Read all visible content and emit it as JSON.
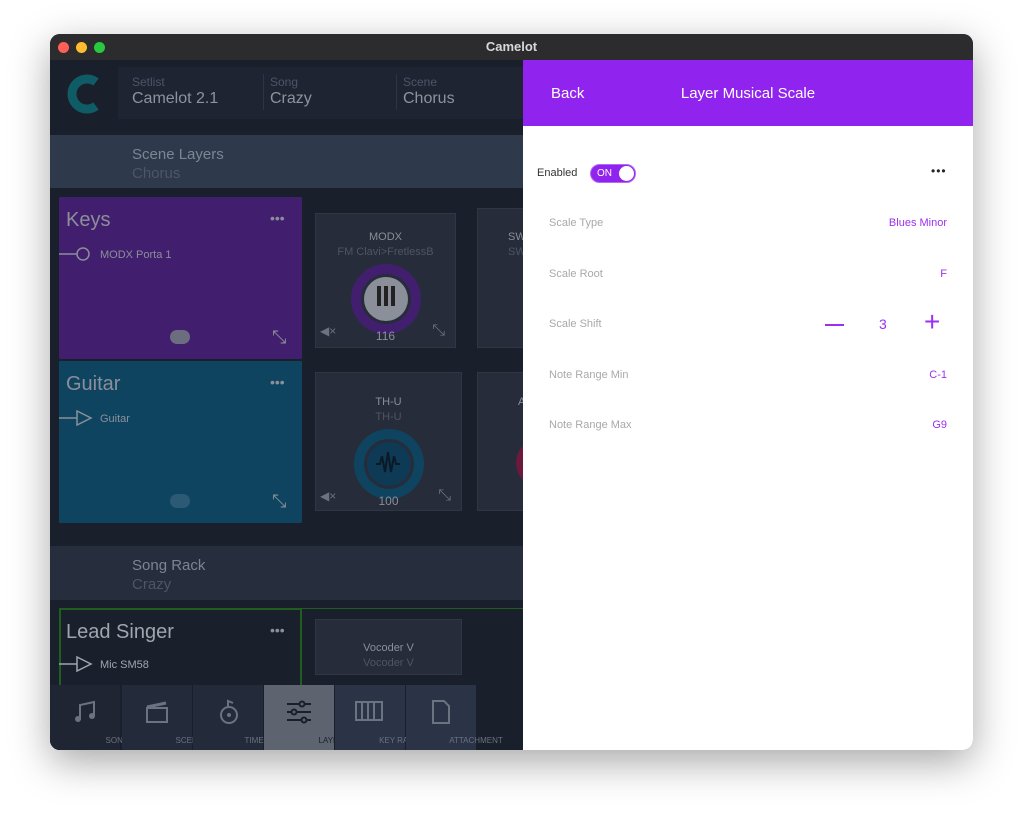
{
  "window": {
    "title": "Camelot"
  },
  "header": {
    "setlist_label": "Setlist",
    "setlist": "Camelot 2.1",
    "song_label": "Song",
    "song": "Crazy",
    "scene_label": "Scene",
    "scene": "Chorus"
  },
  "scene_layers": {
    "title": "Scene Layers",
    "subtitle": "Chorus"
  },
  "layers": [
    {
      "name": "Keys",
      "input": "MODX Porta 1",
      "color": "#421f6e",
      "module": {
        "title": "MODX",
        "subtitle": "FM Clavi>FretlessB",
        "value": "116"
      },
      "module2": {
        "title": "SW",
        "subtitle": "SW"
      }
    },
    {
      "name": "Guitar",
      "input": "Guitar",
      "color": "#0f4461",
      "module": {
        "title": "TH-U",
        "subtitle": "TH-U",
        "value": "100"
      },
      "module2": {
        "title": "A"
      }
    }
  ],
  "song_rack": {
    "title": "Song Rack",
    "subtitle": "Crazy"
  },
  "lead": {
    "name": "Lead Singer",
    "input": "Mic SM58",
    "module": {
      "title": "Vocoder V",
      "subtitle": "Vocoder V"
    }
  },
  "tabs": [
    {
      "label": "SONGS",
      "icon": "music-note-icon"
    },
    {
      "label": "SCENES",
      "icon": "clapperboard-icon"
    },
    {
      "label": "TIMELINE",
      "icon": "timeline-icon"
    },
    {
      "label": "LAYERS",
      "icon": "sliders-icon",
      "active": true
    },
    {
      "label": "KEY RANGES",
      "icon": "piano-keys-icon"
    },
    {
      "label": "ATTACHMENT",
      "icon": "document-icon"
    }
  ],
  "panel": {
    "back": "Back",
    "title": "Layer Musical Scale",
    "enabled_label": "Enabled",
    "toggle": "ON",
    "accent": "#9123ee",
    "rows": [
      {
        "label": "Scale Type",
        "value": "Blues Minor"
      },
      {
        "label": "Scale Root",
        "value": "F"
      },
      {
        "label": "Scale Shift",
        "value": "3"
      },
      {
        "label": "Note Range Min",
        "value": "C-1"
      },
      {
        "label": "Note Range Max",
        "value": "G9"
      }
    ]
  }
}
